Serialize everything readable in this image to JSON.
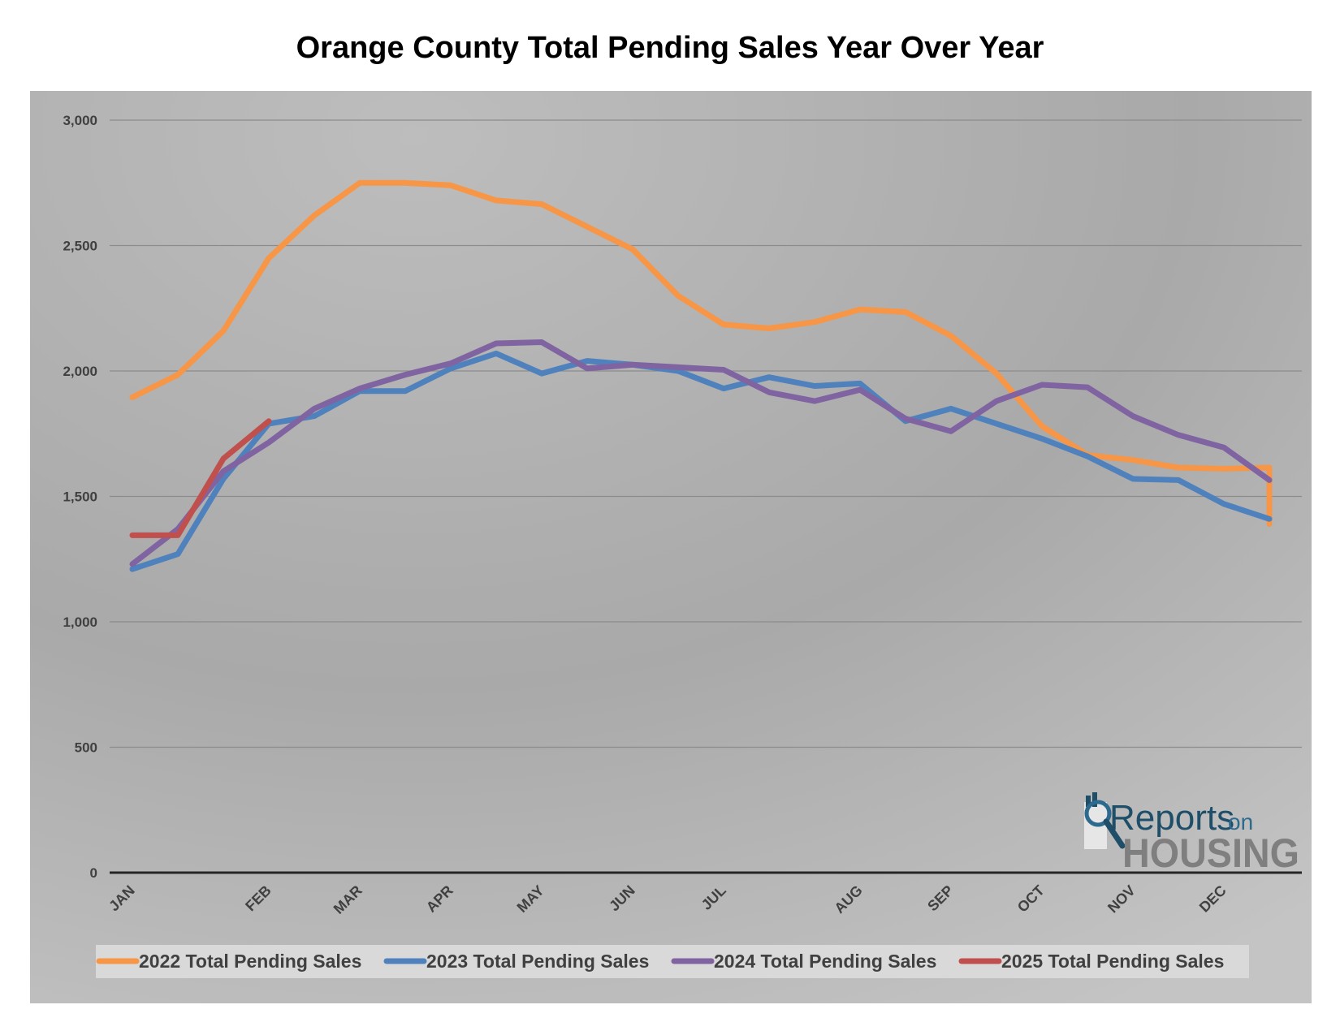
{
  "chart_data": {
    "type": "line",
    "title": "Orange County Total Pending Sales Year Over Year",
    "xlabel": "",
    "ylabel": "",
    "ylim": [
      0,
      3000
    ],
    "yticks": [
      "0",
      "500",
      "1,000",
      "1,500",
      "2,000",
      "2,500",
      "3,000"
    ],
    "month_labels": [
      "JAN",
      "FEB",
      "MAR",
      "APR",
      "MAY",
      "JUN",
      "JUL",
      "AUG",
      "SEP",
      "OCT",
      "NOV",
      "DEC"
    ],
    "grid": true,
    "legend_position": "bottom",
    "series": [
      {
        "name": "2022 Total Pending Sales",
        "color": "#F79646",
        "values": [
          1895,
          1985,
          2160,
          2450,
          2620,
          2750,
          2750,
          2740,
          2680,
          2665,
          2575,
          2485,
          2300,
          2185,
          2170,
          2195,
          2245,
          2235,
          2140,
          1990,
          1780,
          1665,
          1645,
          1615,
          1610,
          1615,
          1390
        ]
      },
      {
        "name": "2023 Total Pending Sales",
        "color": "#4F81BD",
        "values": [
          1210,
          1270,
          1570,
          1790,
          1820,
          1920,
          1920,
          2010,
          2070,
          1990,
          2040,
          2025,
          2000,
          1930,
          1975,
          1940,
          1950,
          1800,
          1850,
          1790,
          1730,
          1660,
          1570,
          1565,
          1470,
          1410
        ]
      },
      {
        "name": "2024 Total Pending Sales",
        "color": "#8064A2",
        "values": [
          1230,
          1370,
          1600,
          1715,
          1850,
          1930,
          1985,
          2030,
          2110,
          2115,
          2010,
          2025,
          2015,
          2005,
          1915,
          1880,
          1925,
          1810,
          1760,
          1880,
          1945,
          1935,
          1820,
          1745,
          1695,
          1565
        ]
      },
      {
        "name": "2025 Total Pending Sales",
        "color": "#C0504D",
        "values": [
          1345,
          1345,
          1650,
          1800
        ]
      }
    ]
  },
  "logo": {
    "line1": "Reports",
    "line1_suffix": "on",
    "line2": "HOUSING"
  }
}
